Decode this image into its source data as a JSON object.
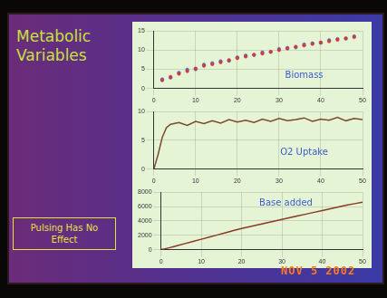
{
  "slide": {
    "title": "Metabolic Variables",
    "note": "Pulsing Has No Effect",
    "date_stamp": "NOV 5 2002"
  },
  "chart_data": [
    {
      "type": "scatter",
      "annotation": "Biomass",
      "marker": "circle",
      "grid": true,
      "x": [
        2,
        4,
        6,
        8,
        10,
        12,
        14,
        16,
        18,
        20,
        22,
        24,
        26,
        28,
        30,
        32,
        34,
        36,
        38,
        40,
        42,
        44,
        46,
        48
      ],
      "series": [
        {
          "color": "#d03a3a",
          "values": [
            2.1,
            3.0,
            3.8,
            4.5,
            5.2,
            5.9,
            6.3,
            6.8,
            7.4,
            7.9,
            8.3,
            8.8,
            9.1,
            9.6,
            10.0,
            10.4,
            10.9,
            11.2,
            11.6,
            12.0,
            12.3,
            12.7,
            13.1,
            13.4
          ]
        },
        {
          "color": "#4a6ad0",
          "values": [
            2.4,
            2.8,
            4.1,
            4.9,
            5.0,
            6.2,
            6.6,
            7.1,
            7.2,
            8.1,
            8.6,
            8.7,
            9.4,
            9.5,
            10.3,
            10.6,
            10.7,
            11.5,
            11.8,
            11.9,
            12.6,
            12.9,
            13.0,
            13.6
          ]
        }
      ],
      "xlim": [
        0,
        50
      ],
      "xticks": [
        0,
        10,
        20,
        30,
        40,
        50
      ],
      "ylim": [
        0,
        15
      ],
      "yticks": [
        0,
        5,
        10,
        15
      ]
    },
    {
      "type": "line",
      "annotation": "O2 Uptake",
      "grid": true,
      "x": [
        0,
        1,
        2,
        3,
        4,
        6,
        8,
        10,
        12,
        14,
        16,
        18,
        20,
        22,
        24,
        26,
        28,
        30,
        32,
        34,
        36,
        38,
        40,
        42,
        44,
        46,
        48,
        50
      ],
      "series": [
        {
          "color": "#7a4a2a",
          "values": [
            0,
            2.5,
            5.5,
            7.2,
            7.8,
            8.1,
            7.6,
            8.3,
            7.9,
            8.4,
            8.0,
            8.6,
            8.2,
            8.5,
            8.1,
            8.7,
            8.3,
            8.8,
            8.4,
            8.6,
            8.9,
            8.3,
            8.7,
            8.5,
            9.0,
            8.4,
            8.8,
            8.6
          ]
        }
      ],
      "xlim": [
        0,
        50
      ],
      "xticks": [
        0,
        10,
        20,
        30,
        40,
        50
      ],
      "ylim": [
        0,
        10
      ],
      "yticks": [
        0,
        5,
        10
      ]
    },
    {
      "type": "line",
      "annotation": "Base added",
      "grid": true,
      "x": [
        0,
        1,
        2,
        3,
        4,
        6,
        8,
        10,
        12,
        14,
        16,
        18,
        20,
        22,
        24,
        26,
        28,
        30,
        32,
        34,
        36,
        38,
        40,
        42,
        44,
        46,
        48,
        50
      ],
      "series": [
        {
          "color": "#8a3a22",
          "values": [
            0,
            100,
            250,
            400,
            550,
            850,
            1150,
            1450,
            1750,
            2050,
            2350,
            2650,
            2950,
            3200,
            3450,
            3700,
            3950,
            4200,
            4450,
            4700,
            4950,
            5200,
            5450,
            5700,
            5950,
            6200,
            6400,
            6600
          ]
        }
      ],
      "xlim": [
        0,
        50
      ],
      "xticks": [
        0,
        10,
        20,
        30,
        40,
        50
      ],
      "ylim": [
        0,
        8000
      ],
      "yticks": [
        0,
        2000,
        4000,
        6000,
        8000
      ]
    }
  ]
}
